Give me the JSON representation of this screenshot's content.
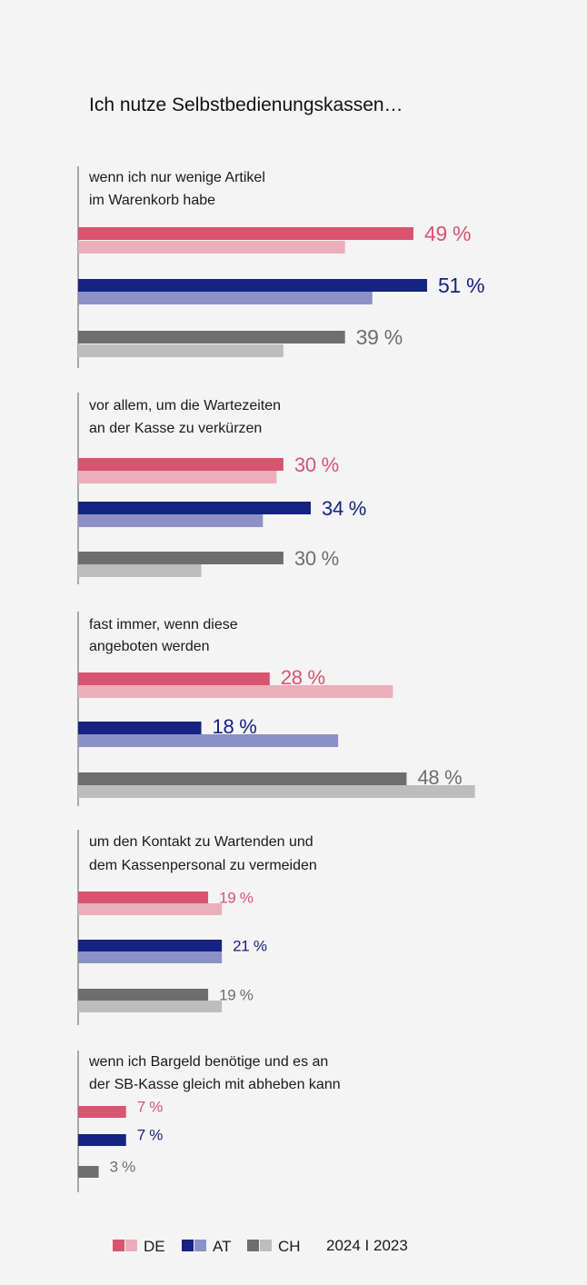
{
  "chart_data": {
    "type": "bar",
    "orientation": "horizontal",
    "title": "Ich nutze Selbstbedienungskassen…",
    "categories": [
      [
        "wenn ich nur wenige Artikel",
        "im Warenkorb habe"
      ],
      [
        "vor allem, um die Wartezeiten",
        "an der Kasse zu verkürzen"
      ],
      [
        "fast immer, wenn diese",
        "angeboten werden"
      ],
      [
        "um den Kontakt zu Wartenden und",
        "dem Kassenpersonal zu vermeiden"
      ],
      [
        "wenn ich Bargeld benötige und es an",
        "der SB-Kasse gleich mit abheben kann"
      ]
    ],
    "series": [
      {
        "name": "DE",
        "year": "2024",
        "values": [
          49,
          30,
          28,
          19,
          7
        ],
        "labels": [
          "49 %",
          "30 %",
          "28 %",
          "19 %",
          "7 %"
        ]
      },
      {
        "name": "DE",
        "year": "2023",
        "values": [
          39,
          29,
          46,
          21,
          null
        ]
      },
      {
        "name": "AT",
        "year": "2024",
        "values": [
          51,
          34,
          18,
          21,
          7
        ],
        "labels": [
          "51 %",
          "34 %",
          "18 %",
          "21 %",
          "7 %"
        ]
      },
      {
        "name": "AT",
        "year": "2023",
        "values": [
          43,
          27,
          38,
          21,
          null
        ]
      },
      {
        "name": "CH",
        "year": "2024",
        "values": [
          39,
          30,
          48,
          19,
          3
        ],
        "labels": [
          "39 %",
          "30 %",
          "48 %",
          "19 %",
          "3 %"
        ]
      },
      {
        "name": "CH",
        "year": "2023",
        "values": [
          30,
          18,
          58,
          21,
          null
        ]
      }
    ],
    "colors": {
      "DE": {
        "2024": "#d9546f",
        "2023": "#ebaebb",
        "label": "#d9546f"
      },
      "AT": {
        "2024": "#152382",
        "2023": "#8b91c6",
        "label": "#152382"
      },
      "CH": {
        "2024": "#6e6e6e",
        "2023": "#bdbdbd",
        "label": "#6e6e6e"
      }
    },
    "legend": {
      "items": [
        "DE",
        "AT",
        "CH"
      ],
      "years": "2024 I 2023",
      "placement": "bottom"
    },
    "grid": false
  }
}
